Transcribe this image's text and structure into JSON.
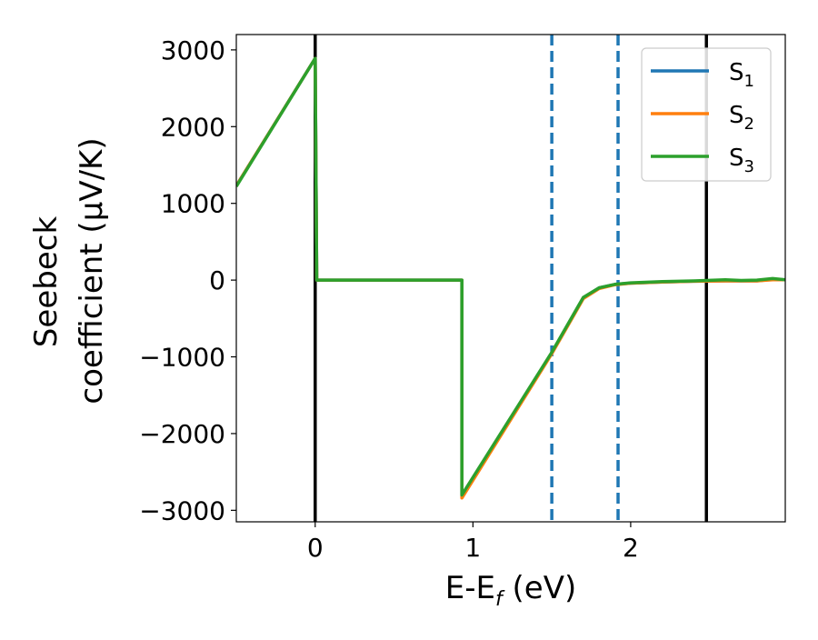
{
  "chart_data": {
    "type": "line",
    "title": "",
    "xlabel_main": "E-E",
    "xlabel_sub": "f",
    "xlabel_unit": " (eV)",
    "ylabel_line1": "Seebeck",
    "ylabel_line2": "coefficient  (μV/K)",
    "xlim": [
      -0.5,
      2.98
    ],
    "ylim": [
      -3150,
      3200
    ],
    "x_ticks": [
      0,
      1,
      2
    ],
    "x_tick_labels": [
      "0",
      "1",
      "2"
    ],
    "y_ticks": [
      3000,
      2000,
      1000,
      0,
      -1000,
      -2000,
      -3000
    ],
    "y_tick_labels": [
      "3000",
      "2000",
      "1000",
      "0",
      "−1000",
      "−2000",
      "−3000"
    ],
    "grid": false,
    "legend_position": "top-right",
    "vlines": [
      {
        "x": 0.0,
        "style": "solid",
        "color": "#000000"
      },
      {
        "x": 2.48,
        "style": "solid",
        "color": "#000000"
      },
      {
        "x": 1.5,
        "style": "dashed",
        "color": "#1f77b4"
      },
      {
        "x": 1.92,
        "style": "dashed",
        "color": "#1f77b4"
      }
    ],
    "series": [
      {
        "name": "S",
        "sub": "1",
        "color": "#1f77b4",
        "x": [
          -0.5,
          0.0,
          0.01,
          0.93,
          0.93,
          1.5,
          1.7,
          1.8,
          1.9,
          2.0,
          2.2,
          2.4,
          2.6,
          2.7,
          2.8,
          2.9,
          2.98
        ],
        "y": [
          1230,
          2890,
          0,
          0,
          -2820,
          -950,
          -230,
          -100,
          -55,
          -40,
          -25,
          -15,
          -10,
          -10,
          -10,
          10,
          5
        ]
      },
      {
        "name": "S",
        "sub": "2",
        "color": "#ff7f0e",
        "x": [
          -0.5,
          0.0,
          0.01,
          0.93,
          0.93,
          1.5,
          1.7,
          1.8,
          1.9,
          2.0,
          2.2,
          2.4,
          2.6,
          2.7,
          2.8,
          2.9,
          2.98
        ],
        "y": [
          1230,
          2890,
          0,
          0,
          -2840,
          -960,
          -240,
          -110,
          -60,
          -40,
          -25,
          -15,
          -10,
          -10,
          -10,
          5,
          5
        ]
      },
      {
        "name": "S",
        "sub": "3",
        "color": "#2ca02c",
        "x": [
          -0.5,
          0.0,
          0.01,
          0.93,
          0.93,
          1.5,
          1.7,
          1.8,
          1.9,
          2.0,
          2.2,
          2.4,
          2.6,
          2.7,
          2.8,
          2.9,
          2.98
        ],
        "y": [
          1220,
          2890,
          0,
          0,
          -2800,
          -940,
          -225,
          -100,
          -55,
          -35,
          -20,
          -10,
          5,
          -5,
          0,
          20,
          5
        ]
      }
    ]
  }
}
